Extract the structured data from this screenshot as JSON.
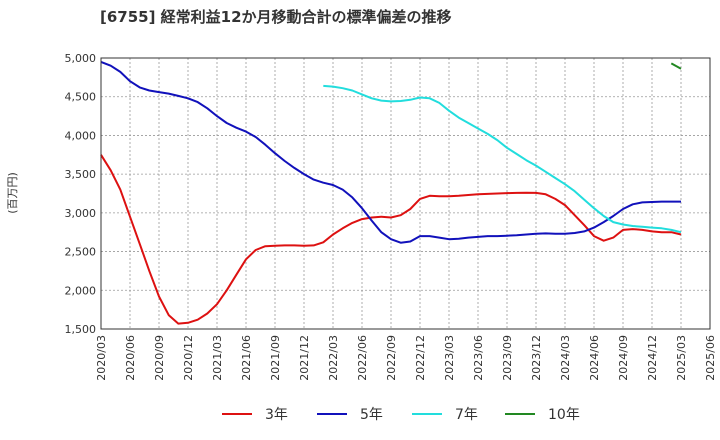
{
  "chart_data": {
    "type": "line",
    "title": "[6755]  経常利益12か月移動合計の標準偏差の推移",
    "ylabel": "(百万円)",
    "xlabel": "",
    "ylim": [
      1500,
      5000
    ],
    "y_ticks": [
      "1,500",
      "2,000",
      "2,500",
      "3,000",
      "3,500",
      "4,000",
      "4,500",
      "5,000"
    ],
    "y_tick_values": [
      1500,
      2000,
      2500,
      3000,
      3500,
      4000,
      4500,
      5000
    ],
    "x_ticks": [
      "2020/03",
      "2020/06",
      "2020/09",
      "2020/12",
      "2021/03",
      "2021/06",
      "2021/09",
      "2021/12",
      "2022/03",
      "2022/06",
      "2022/09",
      "2022/12",
      "2023/03",
      "2023/06",
      "2023/09",
      "2023/12",
      "2024/03",
      "2024/06",
      "2024/09",
      "2024/12",
      "2025/03",
      "2025/06"
    ],
    "x_start": "2020/03",
    "grid": true,
    "legend_position": "bottom",
    "series": [
      {
        "name": "3年",
        "color": "#dd1111",
        "points": [
          [
            "2020/03",
            3750
          ],
          [
            "2020/04",
            3550
          ],
          [
            "2020/05",
            3300
          ],
          [
            "2020/06",
            2950
          ],
          [
            "2020/07",
            2600
          ],
          [
            "2020/08",
            2250
          ],
          [
            "2020/09",
            1920
          ],
          [
            "2020/10",
            1680
          ],
          [
            "2020/11",
            1570
          ],
          [
            "2020/12",
            1580
          ],
          [
            "2021/01",
            1620
          ],
          [
            "2021/02",
            1700
          ],
          [
            "2021/03",
            1820
          ],
          [
            "2021/04",
            2000
          ],
          [
            "2021/05",
            2200
          ],
          [
            "2021/06",
            2400
          ],
          [
            "2021/07",
            2520
          ],
          [
            "2021/08",
            2570
          ],
          [
            "2021/09",
            2575
          ],
          [
            "2021/10",
            2580
          ],
          [
            "2021/11",
            2580
          ],
          [
            "2021/12",
            2575
          ],
          [
            "2022/01",
            2580
          ],
          [
            "2022/02",
            2620
          ],
          [
            "2022/03",
            2720
          ],
          [
            "2022/04",
            2800
          ],
          [
            "2022/05",
            2870
          ],
          [
            "2022/06",
            2920
          ],
          [
            "2022/07",
            2940
          ],
          [
            "2022/08",
            2950
          ],
          [
            "2022/09",
            2940
          ],
          [
            "2022/10",
            2970
          ],
          [
            "2022/11",
            3050
          ],
          [
            "2022/12",
            3180
          ],
          [
            "2023/01",
            3220
          ],
          [
            "2023/02",
            3215
          ],
          [
            "2023/03",
            3215
          ],
          [
            "2023/04",
            3220
          ],
          [
            "2023/05",
            3230
          ],
          [
            "2023/06",
            3240
          ],
          [
            "2023/07",
            3245
          ],
          [
            "2023/08",
            3250
          ],
          [
            "2023/09",
            3255
          ],
          [
            "2023/10",
            3258
          ],
          [
            "2023/11",
            3260
          ],
          [
            "2023/12",
            3258
          ],
          [
            "2024/01",
            3240
          ],
          [
            "2024/02",
            3180
          ],
          [
            "2024/03",
            3100
          ],
          [
            "2024/04",
            2970
          ],
          [
            "2024/05",
            2840
          ],
          [
            "2024/06",
            2700
          ],
          [
            "2024/07",
            2640
          ],
          [
            "2024/08",
            2680
          ],
          [
            "2024/09",
            2780
          ],
          [
            "2024/10",
            2790
          ],
          [
            "2024/11",
            2780
          ],
          [
            "2024/12",
            2760
          ],
          [
            "2025/01",
            2750
          ],
          [
            "2025/02",
            2750
          ],
          [
            "2025/03",
            2720
          ]
        ]
      },
      {
        "name": "5年",
        "color": "#1111bb",
        "points": [
          [
            "2020/03",
            4950
          ],
          [
            "2020/04",
            4900
          ],
          [
            "2020/05",
            4820
          ],
          [
            "2020/06",
            4700
          ],
          [
            "2020/07",
            4620
          ],
          [
            "2020/08",
            4580
          ],
          [
            "2020/09",
            4560
          ],
          [
            "2020/10",
            4540
          ],
          [
            "2020/11",
            4510
          ],
          [
            "2020/12",
            4480
          ],
          [
            "2021/01",
            4430
          ],
          [
            "2021/02",
            4350
          ],
          [
            "2021/03",
            4250
          ],
          [
            "2021/04",
            4160
          ],
          [
            "2021/05",
            4100
          ],
          [
            "2021/06",
            4050
          ],
          [
            "2021/07",
            3980
          ],
          [
            "2021/08",
            3880
          ],
          [
            "2021/09",
            3770
          ],
          [
            "2021/10",
            3670
          ],
          [
            "2021/11",
            3580
          ],
          [
            "2021/12",
            3500
          ],
          [
            "2022/01",
            3430
          ],
          [
            "2022/02",
            3390
          ],
          [
            "2022/03",
            3360
          ],
          [
            "2022/04",
            3300
          ],
          [
            "2022/05",
            3200
          ],
          [
            "2022/06",
            3060
          ],
          [
            "2022/07",
            2900
          ],
          [
            "2022/08",
            2750
          ],
          [
            "2022/09",
            2660
          ],
          [
            "2022/10",
            2615
          ],
          [
            "2022/11",
            2630
          ],
          [
            "2022/12",
            2700
          ],
          [
            "2023/01",
            2700
          ],
          [
            "2023/02",
            2680
          ],
          [
            "2023/03",
            2660
          ],
          [
            "2023/04",
            2665
          ],
          [
            "2023/05",
            2680
          ],
          [
            "2023/06",
            2690
          ],
          [
            "2023/07",
            2700
          ],
          [
            "2023/08",
            2700
          ],
          [
            "2023/09",
            2705
          ],
          [
            "2023/10",
            2710
          ],
          [
            "2023/11",
            2720
          ],
          [
            "2023/12",
            2730
          ],
          [
            "2024/01",
            2735
          ],
          [
            "2024/02",
            2730
          ],
          [
            "2024/03",
            2730
          ],
          [
            "2024/04",
            2740
          ],
          [
            "2024/05",
            2760
          ],
          [
            "2024/06",
            2810
          ],
          [
            "2024/07",
            2880
          ],
          [
            "2024/08",
            2960
          ],
          [
            "2024/09",
            3050
          ],
          [
            "2024/10",
            3110
          ],
          [
            "2024/11",
            3135
          ],
          [
            "2024/12",
            3140
          ],
          [
            "2025/01",
            3145
          ],
          [
            "2025/02",
            3145
          ],
          [
            "2025/03",
            3145
          ]
        ]
      },
      {
        "name": "7年",
        "color": "#22dddd",
        "points": [
          [
            "2022/02",
            4640
          ],
          [
            "2022/03",
            4630
          ],
          [
            "2022/04",
            4610
          ],
          [
            "2022/05",
            4580
          ],
          [
            "2022/06",
            4530
          ],
          [
            "2022/07",
            4480
          ],
          [
            "2022/08",
            4450
          ],
          [
            "2022/09",
            4440
          ],
          [
            "2022/10",
            4445
          ],
          [
            "2022/11",
            4460
          ],
          [
            "2022/12",
            4490
          ],
          [
            "2023/01",
            4480
          ],
          [
            "2023/02",
            4420
          ],
          [
            "2023/03",
            4320
          ],
          [
            "2023/04",
            4230
          ],
          [
            "2023/05",
            4160
          ],
          [
            "2023/06",
            4090
          ],
          [
            "2023/07",
            4020
          ],
          [
            "2023/08",
            3940
          ],
          [
            "2023/09",
            3840
          ],
          [
            "2023/10",
            3760
          ],
          [
            "2023/11",
            3680
          ],
          [
            "2023/12",
            3610
          ],
          [
            "2024/01",
            3530
          ],
          [
            "2024/02",
            3450
          ],
          [
            "2024/03",
            3370
          ],
          [
            "2024/04",
            3280
          ],
          [
            "2024/05",
            3170
          ],
          [
            "2024/06",
            3060
          ],
          [
            "2024/07",
            2960
          ],
          [
            "2024/08",
            2880
          ],
          [
            "2024/09",
            2850
          ],
          [
            "2024/10",
            2830
          ],
          [
            "2024/11",
            2820
          ],
          [
            "2024/12",
            2810
          ],
          [
            "2025/01",
            2800
          ],
          [
            "2025/02",
            2780
          ],
          [
            "2025/03",
            2750
          ]
        ]
      },
      {
        "name": "10年",
        "color": "#228822",
        "points": [
          [
            "2025/02",
            4930
          ],
          [
            "2025/03",
            4860
          ]
        ]
      }
    ]
  }
}
